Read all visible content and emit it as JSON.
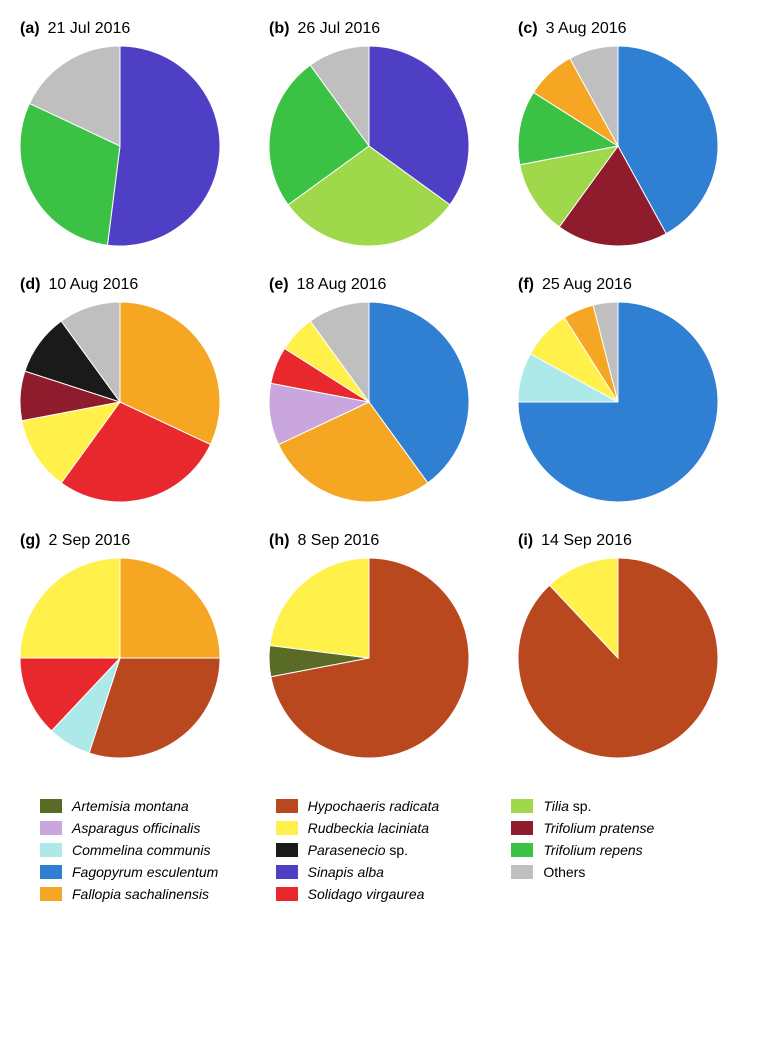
{
  "background_color": "#ffffff",
  "title_fontsize": 16,
  "legend_fontsize": 14,
  "species_colors": {
    "artemisia_montana": "#5a6b26",
    "asparagus_officinalis": "#c9a6dd",
    "commelina_communis": "#aee9e9",
    "fagopyrum_esculentum": "#2f7fd3",
    "fallopia_sachalinensis": "#f5a623",
    "hypochaeris_radicata": "#b9481f",
    "rudbeckia_laciniata": "#fff04a",
    "parasenecio_sp": "#1a1a1a",
    "sinapis_alba": "#4f3fc4",
    "solidago_virgaurea": "#e8282c",
    "tilia_sp": "#9fd84a",
    "trifolium_pratense": "#8e1c2d",
    "trifolium_repens": "#3bc245",
    "others": "#bfbfbf"
  },
  "legend": [
    {
      "key": "artemisia_montana",
      "label_italic": "Artemisia montana",
      "label_plain": ""
    },
    {
      "key": "hypochaeris_radicata",
      "label_italic": "Hypochaeris radicata",
      "label_plain": ""
    },
    {
      "key": "tilia_sp",
      "label_italic": "Tilia",
      "label_plain": " sp."
    },
    {
      "key": "asparagus_officinalis",
      "label_italic": "Asparagus officinalis",
      "label_plain": ""
    },
    {
      "key": "rudbeckia_laciniata",
      "label_italic": "Rudbeckia laciniata",
      "label_plain": ""
    },
    {
      "key": "trifolium_pratense",
      "label_italic": "Trifolium pratense",
      "label_plain": ""
    },
    {
      "key": "commelina_communis",
      "label_italic": "Commelina communis",
      "label_plain": ""
    },
    {
      "key": "parasenecio_sp",
      "label_italic": "Parasenecio",
      "label_plain": " sp."
    },
    {
      "key": "trifolium_repens",
      "label_italic": "Trifolium repens",
      "label_plain": ""
    },
    {
      "key": "fagopyrum_esculentum",
      "label_italic": "Fagopyrum esculentum",
      "label_plain": ""
    },
    {
      "key": "sinapis_alba",
      "label_italic": "Sinapis alba",
      "label_plain": ""
    },
    {
      "key": "others",
      "label_italic": "",
      "label_plain": "Others"
    },
    {
      "key": "fallopia_sachalinensis",
      "label_italic": "Fallopia sachalinensis",
      "label_plain": ""
    },
    {
      "key": "solidago_virgaurea",
      "label_italic": "Solidago virgaurea",
      "label_plain": ""
    }
  ],
  "panels": [
    {
      "letter": "(a)",
      "date": "21 Jul 2016",
      "slices": [
        {
          "species": "sinapis_alba",
          "value": 52
        },
        {
          "species": "trifolium_repens",
          "value": 30
        },
        {
          "species": "others",
          "value": 18
        }
      ]
    },
    {
      "letter": "(b)",
      "date": "26 Jul 2016",
      "slices": [
        {
          "species": "sinapis_alba",
          "value": 35
        },
        {
          "species": "tilia_sp",
          "value": 30
        },
        {
          "species": "trifolium_repens",
          "value": 25
        },
        {
          "species": "others",
          "value": 10
        }
      ]
    },
    {
      "letter": "(c)",
      "date": "3 Aug 2016",
      "slices": [
        {
          "species": "fagopyrum_esculentum",
          "value": 42
        },
        {
          "species": "trifolium_pratense",
          "value": 18
        },
        {
          "species": "tilia_sp",
          "value": 12
        },
        {
          "species": "trifolium_repens",
          "value": 12
        },
        {
          "species": "fallopia_sachalinensis",
          "value": 8
        },
        {
          "species": "others",
          "value": 8
        }
      ]
    },
    {
      "letter": "(d)",
      "date": "10 Aug 2016",
      "slices": [
        {
          "species": "fallopia_sachalinensis",
          "value": 32
        },
        {
          "species": "solidago_virgaurea",
          "value": 28
        },
        {
          "species": "rudbeckia_laciniata",
          "value": 12
        },
        {
          "species": "trifolium_pratense",
          "value": 8
        },
        {
          "species": "parasenecio_sp",
          "value": 10
        },
        {
          "species": "others",
          "value": 10
        }
      ]
    },
    {
      "letter": "(e)",
      "date": "18 Aug 2016",
      "slices": [
        {
          "species": "fagopyrum_esculentum",
          "value": 40
        },
        {
          "species": "fallopia_sachalinensis",
          "value": 28
        },
        {
          "species": "asparagus_officinalis",
          "value": 10
        },
        {
          "species": "solidago_virgaurea",
          "value": 6
        },
        {
          "species": "rudbeckia_laciniata",
          "value": 6
        },
        {
          "species": "others",
          "value": 10
        }
      ]
    },
    {
      "letter": "(f)",
      "date": "25 Aug 2016",
      "slices": [
        {
          "species": "fagopyrum_esculentum",
          "value": 75
        },
        {
          "species": "commelina_communis",
          "value": 8
        },
        {
          "species": "rudbeckia_laciniata",
          "value": 8
        },
        {
          "species": "fallopia_sachalinensis",
          "value": 5
        },
        {
          "species": "others",
          "value": 4
        }
      ]
    },
    {
      "letter": "(g)",
      "date": "2 Sep 2016",
      "slices": [
        {
          "species": "fallopia_sachalinensis",
          "value": 25
        },
        {
          "species": "hypochaeris_radicata",
          "value": 30
        },
        {
          "species": "commelina_communis",
          "value": 7
        },
        {
          "species": "solidago_virgaurea",
          "value": 13
        },
        {
          "species": "rudbeckia_laciniata",
          "value": 25
        }
      ]
    },
    {
      "letter": "(h)",
      "date": "8 Sep 2016",
      "slices": [
        {
          "species": "hypochaeris_radicata",
          "value": 72
        },
        {
          "species": "artemisia_montana",
          "value": 5
        },
        {
          "species": "rudbeckia_laciniata",
          "value": 23
        }
      ]
    },
    {
      "letter": "(i)",
      "date": "14 Sep 2016",
      "slices": [
        {
          "species": "hypochaeris_radicata",
          "value": 88
        },
        {
          "species": "rudbeckia_laciniata",
          "value": 12
        }
      ]
    }
  ]
}
